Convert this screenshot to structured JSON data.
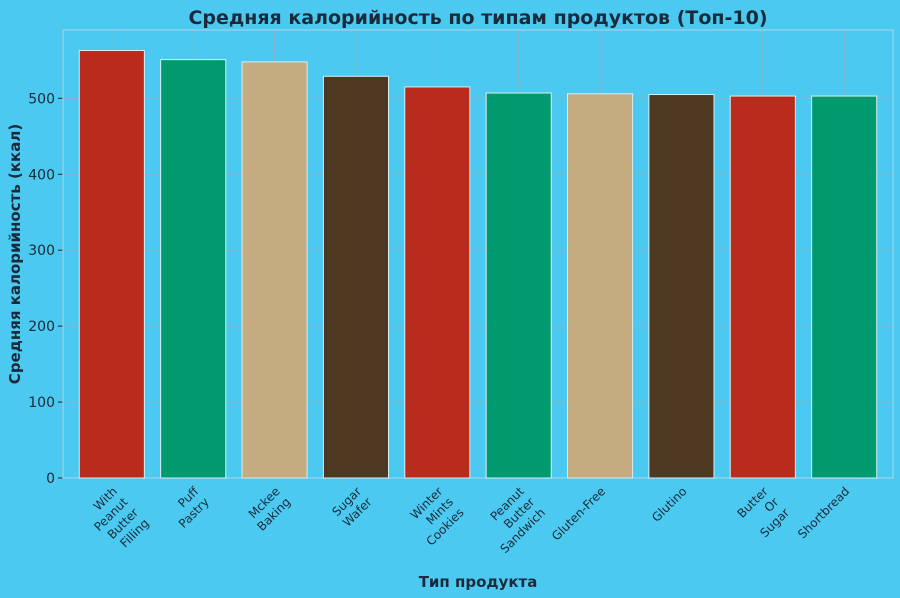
{
  "colors": {
    "background": "#4cc9f0",
    "text": "#1a2a3a",
    "grid": "#7fb8c8",
    "palette": [
      "#b92b1d",
      "#009a6e",
      "#c4ab80",
      "#4d3822"
    ]
  },
  "chart_data": {
    "type": "bar",
    "title": "Средняя калорийность по типам продуктов (Топ-10)",
    "xlabel": "Тип продукта",
    "ylabel": "Средняя калорийность (ккал)",
    "ylim": [
      0,
      590
    ],
    "yticks": [
      0,
      100,
      200,
      300,
      400,
      500
    ],
    "grid": true,
    "categories": [
      [
        "With",
        "Peanut",
        "Butter",
        "Filling"
      ],
      [
        "Puff",
        "Pastry"
      ],
      [
        "Mckee",
        "Baking"
      ],
      [
        "Sugar",
        "Wafer"
      ],
      [
        "Winter",
        "Mints",
        "Cookies"
      ],
      [
        "Peanut",
        "Butter",
        "Sandwich"
      ],
      [
        "Gluten-Free"
      ],
      [
        "Glutino"
      ],
      [
        "Butter",
        "Or",
        "Sugar"
      ],
      [
        "Shortbread"
      ]
    ],
    "values": [
      563,
      551,
      548,
      529,
      515,
      507,
      506,
      505,
      503,
      503
    ]
  }
}
